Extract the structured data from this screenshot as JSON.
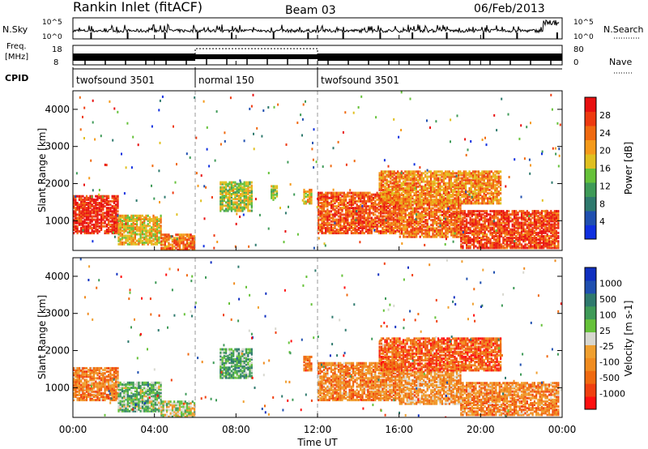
{
  "header": {
    "station": "Rankin Inlet (fitACF)",
    "beam": "Beam 03",
    "date": "06/Feb/2013"
  },
  "side_labels": {
    "nsky": "N.Sky",
    "freq_line1": "Freq.",
    "freq_line2": "[MHz]",
    "cpid": "CPID",
    "nsearch": "N.Search",
    "nave": "Nave"
  },
  "counts_axis": {
    "top": "10^5",
    "bottom": "10^0"
  },
  "freq_axis": {
    "top": "18",
    "bottom": "8"
  },
  "nave_axis": {
    "top": "80",
    "bottom": "0"
  },
  "cpid_segments": [
    {
      "label": "twofsound 3501",
      "start_h": 0,
      "end_h": 6
    },
    {
      "label": "normal 150",
      "start_h": 6,
      "end_h": 12
    },
    {
      "label": "twofsound 3501",
      "start_h": 12,
      "end_h": 24
    }
  ],
  "colors": {
    "power": [
      "#1030e0",
      "#2050b0",
      "#2f7a6e",
      "#3f9b58",
      "#66c23a",
      "#e0c020",
      "#f59a1a",
      "#f06a10",
      "#ee3a10",
      "#e81010"
    ],
    "velocity": [
      "#ff1010",
      "#f04010",
      "#f06a10",
      "#f08c20",
      "#f0a030",
      "#d8d8d0",
      "#66c23a",
      "#3f9b58",
      "#2f7a6e",
      "#2050b0",
      "#1030c0"
    ]
  },
  "chart_data": [
    {
      "type": "heatmap",
      "panel": "power",
      "ylabel": "Slant Range [km]",
      "ylim": [
        200,
        4500
      ],
      "y_ticks": [
        1000,
        2000,
        3000,
        4000
      ],
      "xlim_hours": [
        0,
        24
      ],
      "colorbar": {
        "label": "Power [dB]",
        "range": [
          0,
          32
        ],
        "ticks": [
          "4",
          "8",
          "12",
          "16",
          "20",
          "24",
          "28"
        ]
      },
      "echo_regions": [
        {
          "t": [
            0.0,
            2.2
          ],
          "range_km": [
            700,
            1700
          ],
          "level": 0.9
        },
        {
          "t": [
            2.2,
            4.3
          ],
          "range_km": [
            400,
            1200
          ],
          "level": 0.6
        },
        {
          "t": [
            4.3,
            6.0
          ],
          "range_km": [
            250,
            700
          ],
          "level": 0.75
        },
        {
          "t": [
            7.2,
            8.8
          ],
          "range_km": [
            1300,
            2100
          ],
          "level": 0.5
        },
        {
          "t": [
            9.7,
            10.0
          ],
          "range_km": [
            1600,
            2000
          ],
          "level": 0.55
        },
        {
          "t": [
            11.3,
            11.7
          ],
          "range_km": [
            1500,
            1900
          ],
          "level": 0.6
        },
        {
          "t": [
            12.0,
            16.0
          ],
          "range_km": [
            700,
            1800
          ],
          "level": 0.8
        },
        {
          "t": [
            16.0,
            19.0
          ],
          "range_km": [
            600,
            1600
          ],
          "level": 0.75
        },
        {
          "t": [
            19.0,
            23.8
          ],
          "range_km": [
            300,
            1300
          ],
          "level": 0.85
        },
        {
          "t": [
            15.0,
            21.0
          ],
          "range_km": [
            1500,
            2400
          ],
          "level": 0.7
        }
      ]
    },
    {
      "type": "heatmap",
      "panel": "velocity",
      "ylabel": "Slant Range [km]",
      "ylim": [
        200,
        4500
      ],
      "y_ticks": [
        1000,
        2000,
        3000,
        4000
      ],
      "xlim_hours": [
        0,
        24
      ],
      "xlabel": "Time UT",
      "x_ticks": [
        "00:00",
        "04:00",
        "08:00",
        "12:00",
        "16:00",
        "20:00",
        "00:00"
      ],
      "colorbar": {
        "label": "Velocity [m s-1]",
        "ticks": [
          "-1000",
          "-500",
          "-100",
          "-25",
          "25",
          "100",
          "500",
          "1000"
        ]
      },
      "echo_regions": [
        {
          "t": [
            0.0,
            2.2
          ],
          "range_km": [
            700,
            1600
          ],
          "level": 0.3
        },
        {
          "t": [
            2.2,
            4.3
          ],
          "range_km": [
            400,
            1200
          ],
          "level": 0.6
        },
        {
          "t": [
            4.3,
            6.0
          ],
          "range_km": [
            250,
            700
          ],
          "level": 0.5
        },
        {
          "t": [
            7.2,
            8.8
          ],
          "range_km": [
            1300,
            2100
          ],
          "level": 0.65
        },
        {
          "t": [
            11.3,
            11.7
          ],
          "range_km": [
            1500,
            1900
          ],
          "level": 0.25
        },
        {
          "t": [
            12.0,
            16.0
          ],
          "range_km": [
            700,
            1700
          ],
          "level": 0.3
        },
        {
          "t": [
            16.0,
            19.0
          ],
          "range_km": [
            600,
            1500
          ],
          "level": 0.35
        },
        {
          "t": [
            19.0,
            23.8
          ],
          "range_km": [
            300,
            1200
          ],
          "level": 0.3
        },
        {
          "t": [
            15.0,
            21.0
          ],
          "range_km": [
            1500,
            2400
          ],
          "level": 0.2
        }
      ]
    }
  ]
}
